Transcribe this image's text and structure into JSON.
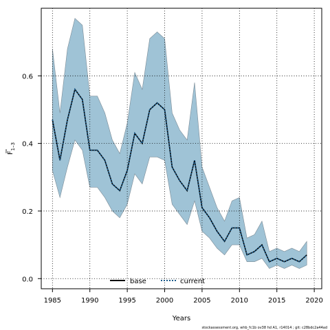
{
  "chart_data": {
    "type": "area",
    "xlabel": "Years",
    "ylabel_main": "F",
    "ylabel_sub": "1–3",
    "xlim": [
      1983.5,
      2021
    ],
    "ylim": [
      -0.03,
      0.8
    ],
    "xticks": [
      1985,
      1990,
      1995,
      2000,
      2005,
      2010,
      2015,
      2020
    ],
    "yticks": [
      0.0,
      0.2,
      0.4,
      0.6
    ],
    "ytick_labels": [
      "0.0",
      "0.2",
      "0.4",
      "0.6"
    ],
    "grid": true,
    "legend": {
      "position": "bottom-center",
      "entries": [
        {
          "name": "base",
          "style": "solid",
          "color": "#000000"
        },
        {
          "name": "current",
          "style": "dotted",
          "color": "#1a5a8a"
        }
      ]
    },
    "band_color": "#9fc3d6",
    "band_edge_color": "#7a8a95",
    "x": [
      1985,
      1986,
      1987,
      1988,
      1989,
      1990,
      1991,
      1992,
      1993,
      1994,
      1995,
      1996,
      1997,
      1998,
      1999,
      2000,
      2001,
      2002,
      2003,
      2004,
      2005,
      2006,
      2007,
      2008,
      2009,
      2010,
      2011,
      2012,
      2013,
      2014,
      2015,
      2016,
      2017,
      2018,
      2019
    ],
    "series": [
      {
        "name": "base",
        "values": [
          0.47,
          0.35,
          0.47,
          0.56,
          0.53,
          0.38,
          0.38,
          0.35,
          0.28,
          0.26,
          0.32,
          0.43,
          0.4,
          0.5,
          0.52,
          0.5,
          0.33,
          0.29,
          0.26,
          0.35,
          0.21,
          0.18,
          0.14,
          0.11,
          0.15,
          0.15,
          0.07,
          0.08,
          0.1,
          0.05,
          0.06,
          0.05,
          0.06,
          0.05,
          0.07
        ]
      },
      {
        "name": "current",
        "values": [
          0.47,
          0.35,
          0.47,
          0.56,
          0.53,
          0.38,
          0.38,
          0.35,
          0.28,
          0.26,
          0.32,
          0.43,
          0.4,
          0.5,
          0.52,
          0.5,
          0.33,
          0.29,
          0.26,
          0.35,
          0.21,
          0.18,
          0.14,
          0.11,
          0.15,
          0.15,
          0.07,
          0.08,
          0.1,
          0.05,
          0.06,
          0.05,
          0.06,
          0.05,
          0.07
        ]
      }
    ],
    "band_upper": [
      0.68,
      0.49,
      0.68,
      0.77,
      0.75,
      0.54,
      0.54,
      0.49,
      0.41,
      0.37,
      0.46,
      0.61,
      0.56,
      0.71,
      0.73,
      0.71,
      0.49,
      0.44,
      0.41,
      0.58,
      0.33,
      0.27,
      0.21,
      0.17,
      0.23,
      0.24,
      0.12,
      0.13,
      0.17,
      0.08,
      0.09,
      0.08,
      0.09,
      0.08,
      0.11
    ],
    "band_lower": [
      0.32,
      0.24,
      0.33,
      0.41,
      0.38,
      0.27,
      0.27,
      0.24,
      0.2,
      0.18,
      0.22,
      0.31,
      0.28,
      0.36,
      0.36,
      0.35,
      0.22,
      0.19,
      0.16,
      0.23,
      0.14,
      0.12,
      0.09,
      0.07,
      0.1,
      0.1,
      0.05,
      0.05,
      0.06,
      0.03,
      0.04,
      0.03,
      0.04,
      0.03,
      0.04
    ],
    "footnote": "stockassessment.org, whb_fc1b ov38 hd A1, r14014 ; git: c28bdc2a44ad"
  }
}
